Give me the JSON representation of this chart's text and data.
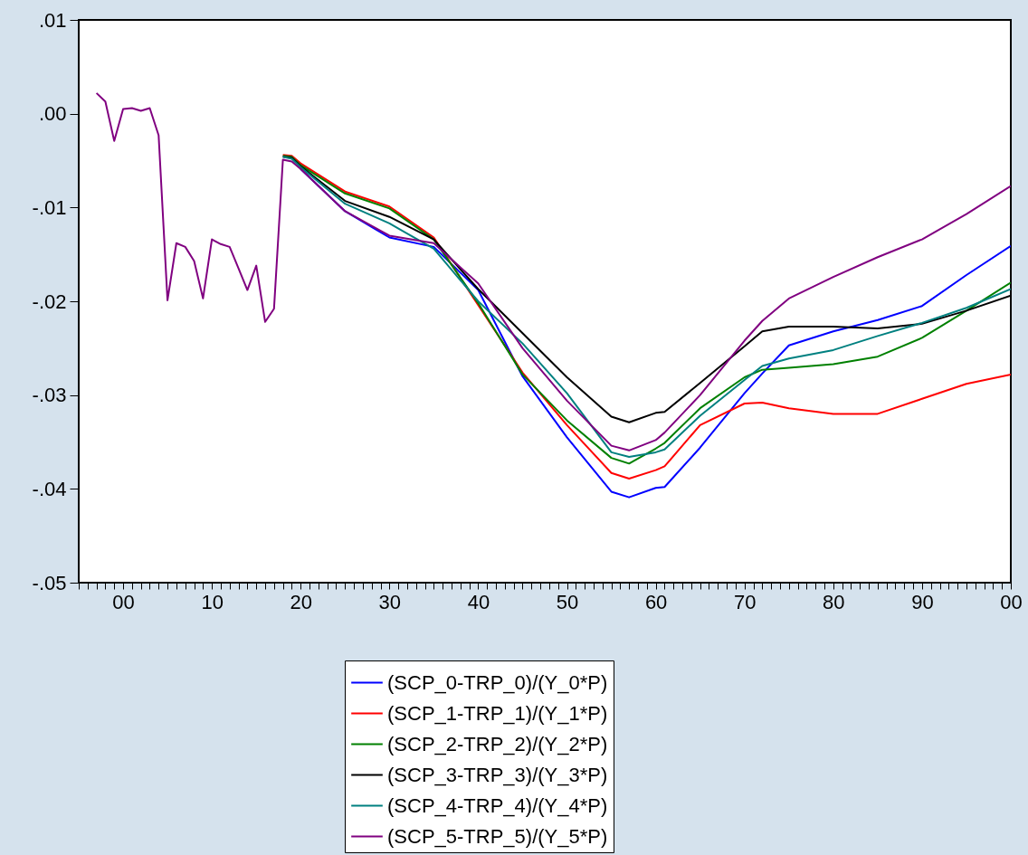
{
  "chart_data": {
    "type": "line",
    "legend": "bottom",
    "grid": false,
    "x": [
      1997,
      1998,
      1999,
      2000,
      2001,
      2002,
      2003,
      2004,
      2005,
      2006,
      2007,
      2008,
      2009,
      2010,
      2011,
      2012,
      2013,
      2014,
      2015,
      2016,
      2017,
      2018,
      2019,
      2020,
      2025,
      2030,
      2035,
      2040,
      2045,
      2050,
      2055,
      2057,
      2060,
      2061,
      2065,
      2070,
      2072,
      2075,
      2080,
      2085,
      2090,
      2095,
      2100
    ],
    "xlim": [
      1995,
      2100
    ],
    "xticks": [
      {
        "value": 1995,
        "label": null
      },
      {
        "value": 1996,
        "label": null
      },
      {
        "value": 1997,
        "label": null
      },
      {
        "value": 1998,
        "label": null
      },
      {
        "value": 1999,
        "label": null
      },
      {
        "value": 2000,
        "label": "00"
      },
      {
        "value": 2001,
        "label": null
      },
      {
        "value": 2002,
        "label": null
      },
      {
        "value": 2003,
        "label": null
      },
      {
        "value": 2004,
        "label": null
      },
      {
        "value": 2005,
        "label": null
      },
      {
        "value": 2006,
        "label": null
      },
      {
        "value": 2007,
        "label": null
      },
      {
        "value": 2008,
        "label": null
      },
      {
        "value": 2009,
        "label": null
      },
      {
        "value": 2010,
        "label": "10"
      },
      {
        "value": 2011,
        "label": null
      },
      {
        "value": 2012,
        "label": null
      },
      {
        "value": 2013,
        "label": null
      },
      {
        "value": 2014,
        "label": null
      },
      {
        "value": 2015,
        "label": null
      },
      {
        "value": 2016,
        "label": null
      },
      {
        "value": 2017,
        "label": null
      },
      {
        "value": 2018,
        "label": null
      },
      {
        "value": 2019,
        "label": null
      },
      {
        "value": 2020,
        "label": "20"
      },
      {
        "value": 2021,
        "label": null
      },
      {
        "value": 2022,
        "label": null
      },
      {
        "value": 2023,
        "label": null
      },
      {
        "value": 2024,
        "label": null
      },
      {
        "value": 2025,
        "label": null
      },
      {
        "value": 2026,
        "label": null
      },
      {
        "value": 2027,
        "label": null
      },
      {
        "value": 2028,
        "label": null
      },
      {
        "value": 2029,
        "label": null
      },
      {
        "value": 2030,
        "label": "30"
      },
      {
        "value": 2031,
        "label": null
      },
      {
        "value": 2032,
        "label": null
      },
      {
        "value": 2033,
        "label": null
      },
      {
        "value": 2034,
        "label": null
      },
      {
        "value": 2035,
        "label": null
      },
      {
        "value": 2036,
        "label": null
      },
      {
        "value": 2037,
        "label": null
      },
      {
        "value": 2038,
        "label": null
      },
      {
        "value": 2039,
        "label": null
      },
      {
        "value": 2040,
        "label": "40"
      },
      {
        "value": 2041,
        "label": null
      },
      {
        "value": 2042,
        "label": null
      },
      {
        "value": 2043,
        "label": null
      },
      {
        "value": 2044,
        "label": null
      },
      {
        "value": 2045,
        "label": null
      },
      {
        "value": 2046,
        "label": null
      },
      {
        "value": 2047,
        "label": null
      },
      {
        "value": 2048,
        "label": null
      },
      {
        "value": 2049,
        "label": null
      },
      {
        "value": 2050,
        "label": "50"
      },
      {
        "value": 2051,
        "label": null
      },
      {
        "value": 2052,
        "label": null
      },
      {
        "value": 2053,
        "label": null
      },
      {
        "value": 2054,
        "label": null
      },
      {
        "value": 2055,
        "label": null
      },
      {
        "value": 2056,
        "label": null
      },
      {
        "value": 2057,
        "label": null
      },
      {
        "value": 2058,
        "label": null
      },
      {
        "value": 2059,
        "label": null
      },
      {
        "value": 2060,
        "label": "60"
      },
      {
        "value": 2061,
        "label": null
      },
      {
        "value": 2062,
        "label": null
      },
      {
        "value": 2063,
        "label": null
      },
      {
        "value": 2064,
        "label": null
      },
      {
        "value": 2065,
        "label": null
      },
      {
        "value": 2066,
        "label": null
      },
      {
        "value": 2067,
        "label": null
      },
      {
        "value": 2068,
        "label": null
      },
      {
        "value": 2069,
        "label": null
      },
      {
        "value": 2070,
        "label": "70"
      },
      {
        "value": 2071,
        "label": null
      },
      {
        "value": 2072,
        "label": null
      },
      {
        "value": 2073,
        "label": null
      },
      {
        "value": 2074,
        "label": null
      },
      {
        "value": 2075,
        "label": null
      },
      {
        "value": 2076,
        "label": null
      },
      {
        "value": 2077,
        "label": null
      },
      {
        "value": 2078,
        "label": null
      },
      {
        "value": 2079,
        "label": null
      },
      {
        "value": 2080,
        "label": "80"
      },
      {
        "value": 2081,
        "label": null
      },
      {
        "value": 2082,
        "label": null
      },
      {
        "value": 2083,
        "label": null
      },
      {
        "value": 2084,
        "label": null
      },
      {
        "value": 2085,
        "label": null
      },
      {
        "value": 2086,
        "label": null
      },
      {
        "value": 2087,
        "label": null
      },
      {
        "value": 2088,
        "label": null
      },
      {
        "value": 2089,
        "label": null
      },
      {
        "value": 2090,
        "label": "90"
      },
      {
        "value": 2091,
        "label": null
      },
      {
        "value": 2092,
        "label": null
      },
      {
        "value": 2093,
        "label": null
      },
      {
        "value": 2094,
        "label": null
      },
      {
        "value": 2095,
        "label": null
      },
      {
        "value": 2096,
        "label": null
      },
      {
        "value": 2097,
        "label": null
      },
      {
        "value": 2098,
        "label": null
      },
      {
        "value": 2099,
        "label": null
      },
      {
        "value": 2100,
        "label": "00"
      }
    ],
    "ylim": [
      -0.05,
      0.01
    ],
    "yticks": [
      {
        "value": 0.01,
        "label": ".01"
      },
      {
        "value": 0,
        "label": ".00"
      },
      {
        "value": -0.01,
        "label": "-.01"
      },
      {
        "value": -0.02,
        "label": "-.02"
      },
      {
        "value": -0.03,
        "label": "-.03"
      },
      {
        "value": -0.04,
        "label": "-.04"
      },
      {
        "value": -0.05,
        "label": "-.05"
      }
    ],
    "series": [
      {
        "name": "(SCP_0-TRP_0)/(Y_0*P)",
        "color": "#0000ff",
        "values": [
          null,
          null,
          null,
          null,
          null,
          null,
          null,
          null,
          null,
          null,
          null,
          null,
          null,
          null,
          null,
          null,
          null,
          null,
          null,
          null,
          null,
          null,
          null,
          -0.0059,
          -0.0104,
          -0.0132,
          -0.0142,
          -0.0188,
          -0.028,
          -0.0345,
          -0.0403,
          -0.0409,
          -0.0399,
          -0.0398,
          -0.0356,
          -0.0298,
          -0.0277,
          -0.0247,
          -0.0232,
          -0.022,
          -0.0205,
          -0.0172,
          -0.0141
        ]
      },
      {
        "name": "(SCP_1-TRP_1)/(Y_1*P)",
        "color": "#ff0000",
        "values": [
          null,
          null,
          null,
          null,
          null,
          null,
          null,
          null,
          null,
          null,
          null,
          null,
          null,
          null,
          null,
          null,
          null,
          null,
          null,
          null,
          null,
          -0.0044,
          -0.0045,
          -0.0053,
          -0.0083,
          -0.0099,
          -0.0132,
          -0.0204,
          -0.0276,
          -0.0332,
          -0.0383,
          -0.0389,
          -0.038,
          -0.0376,
          -0.0332,
          -0.0309,
          -0.0308,
          -0.0314,
          -0.032,
          -0.032,
          -0.0304,
          -0.0288,
          -0.0278
        ]
      },
      {
        "name": "(SCP_2-TRP_2)/(Y_2*P)",
        "color": "#008000",
        "values": [
          null,
          null,
          null,
          null,
          null,
          null,
          null,
          null,
          null,
          null,
          null,
          null,
          null,
          null,
          null,
          null,
          null,
          null,
          null,
          null,
          null,
          -0.0045,
          -0.0046,
          -0.0055,
          -0.0085,
          -0.0101,
          -0.0134,
          -0.0202,
          -0.0278,
          -0.0327,
          -0.0367,
          -0.0373,
          -0.0357,
          -0.0351,
          -0.0314,
          -0.0281,
          -0.0273,
          -0.0271,
          -0.0267,
          -0.0259,
          -0.0239,
          -0.021,
          -0.018
        ]
      },
      {
        "name": "(SCP_3-TRP_3)/(Y_3*P)",
        "color": "#000000",
        "values": [
          null,
          null,
          null,
          null,
          null,
          null,
          null,
          null,
          null,
          null,
          null,
          null,
          null,
          null,
          null,
          null,
          null,
          null,
          null,
          null,
          null,
          -0.0046,
          -0.0047,
          -0.0056,
          -0.0093,
          -0.011,
          -0.0134,
          -0.0187,
          -0.0234,
          -0.0281,
          -0.0323,
          -0.0329,
          -0.0319,
          -0.0318,
          -0.0287,
          -0.0248,
          -0.0232,
          -0.0227,
          -0.0227,
          -0.0229,
          -0.0224,
          -0.021,
          -0.0194
        ]
      },
      {
        "name": "(SCP_4-TRP_4)/(Y_4*P)",
        "color": "#008080",
        "values": [
          null,
          null,
          null,
          null,
          null,
          null,
          null,
          null,
          null,
          null,
          null,
          null,
          null,
          null,
          null,
          null,
          null,
          null,
          null,
          null,
          null,
          -0.0046,
          -0.0048,
          -0.0057,
          -0.0096,
          -0.0117,
          -0.0144,
          -0.02,
          -0.0245,
          -0.0298,
          -0.0361,
          -0.0366,
          -0.0361,
          -0.0358,
          -0.0322,
          -0.0284,
          -0.0269,
          -0.0261,
          -0.0252,
          -0.0237,
          -0.0223,
          -0.0207,
          -0.0187
        ]
      },
      {
        "name": "(SCP_5-TRP_5)/(Y_5*P)",
        "color": "#800080",
        "values": [
          0.0022,
          0.0013,
          -0.0029,
          0.0005,
          0.0006,
          0.0003,
          0.0006,
          -0.0023,
          -0.0199,
          -0.0138,
          -0.0142,
          -0.0157,
          -0.0197,
          -0.0134,
          -0.0139,
          -0.0142,
          -0.0165,
          -0.0188,
          -0.0162,
          -0.0222,
          -0.0208,
          -0.0049,
          -0.0051,
          -0.0059,
          -0.0104,
          -0.013,
          -0.0138,
          -0.0181,
          -0.025,
          -0.0306,
          -0.0354,
          -0.0359,
          -0.0348,
          -0.034,
          -0.03,
          -0.0242,
          -0.0221,
          -0.0197,
          -0.0174,
          -0.0153,
          -0.0134,
          -0.0107,
          -0.0077
        ]
      }
    ]
  }
}
